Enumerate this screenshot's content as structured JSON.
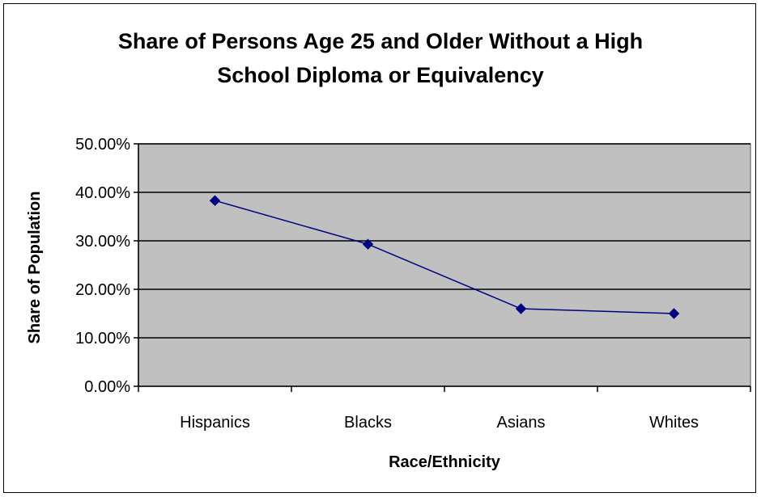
{
  "chart_data": {
    "type": "line",
    "title_line1": "Share of Persons Age 25 and Older Without a High",
    "title_line2": "School Diploma or Equivalency",
    "xlabel": "Race/Ethnicity",
    "ylabel": "Share of Population",
    "categories": [
      "Hispanics",
      "Blacks",
      "Asians",
      "Whites"
    ],
    "series": [
      {
        "values": [
          38.3,
          29.3,
          16.0,
          15.0
        ],
        "color": "#000080"
      }
    ],
    "ylim": [
      0,
      50
    ],
    "yticks": [
      0,
      10,
      20,
      30,
      40,
      50
    ],
    "ytick_labels": [
      "0.00%",
      "10.00%",
      "20.00%",
      "30.00%",
      "40.00%",
      "50.00%"
    ],
    "grid": true,
    "plot_background": "#c0c0c0",
    "legend": "none"
  }
}
